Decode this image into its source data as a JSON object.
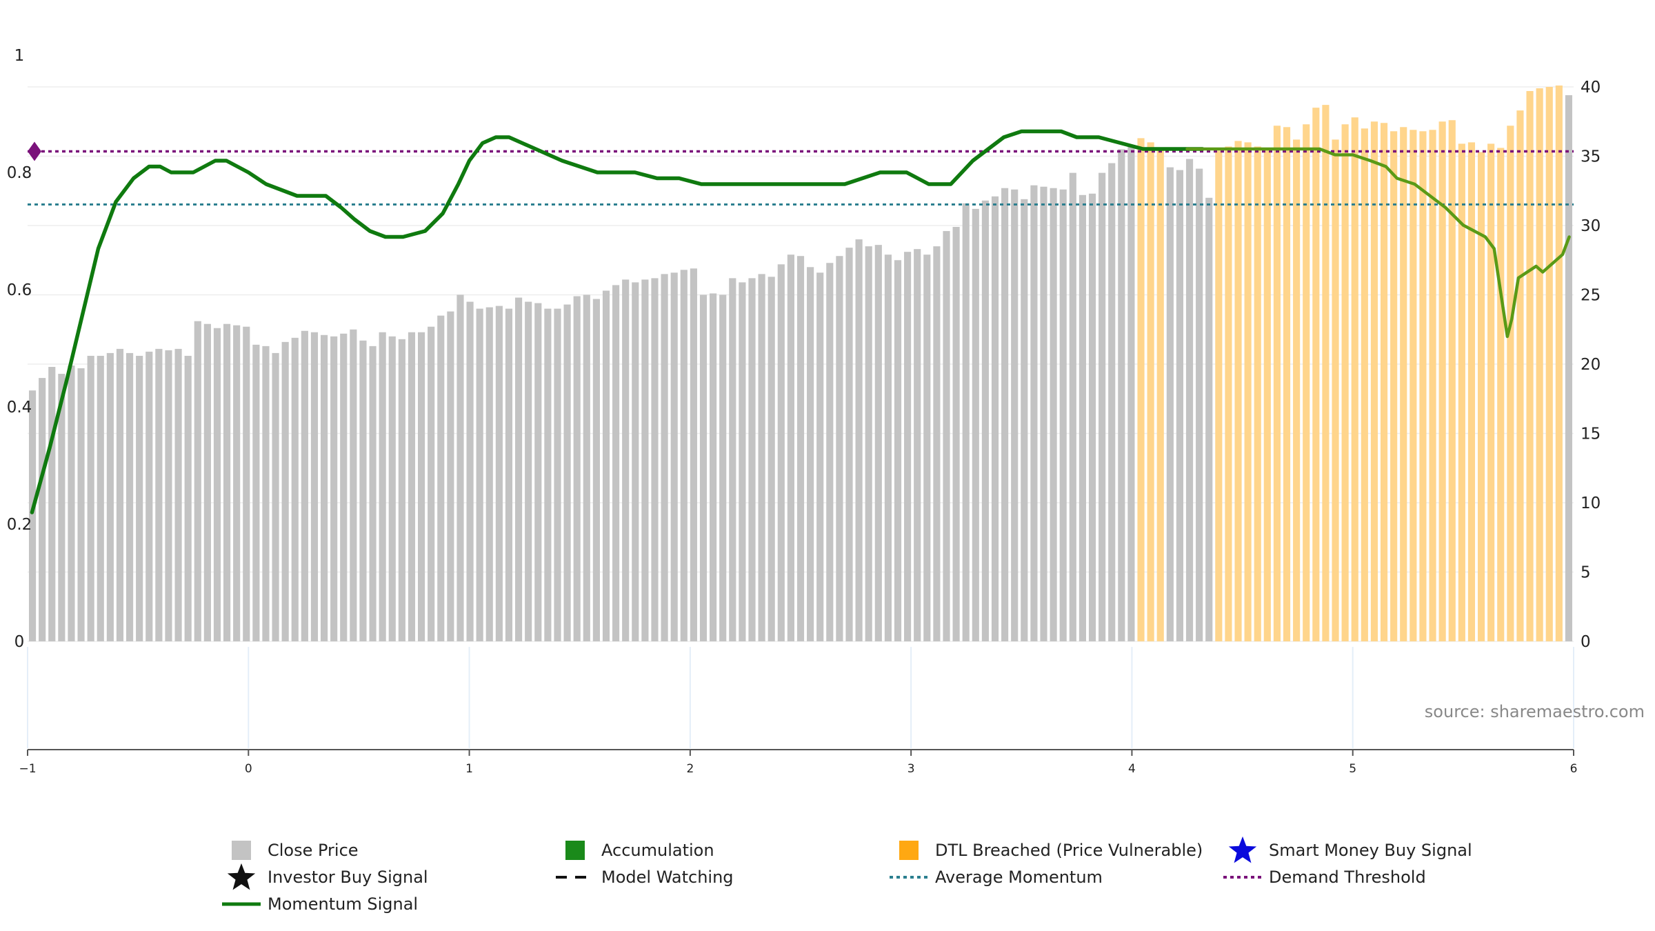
{
  "colors": {
    "close_price": "#c3c3c3",
    "dtl_breached": "#ffd58c",
    "accumulation": "#1a8a1a",
    "momentum": "#0f7a0f",
    "momentum_late": "#5a9a16",
    "average_momentum": "#2b7f8f",
    "demand_threshold": "#7a127a",
    "smart_money": "#0a0adc",
    "investor": "#111111"
  },
  "chart_data": {
    "type": "bar",
    "source": "source: sharemaestro.com",
    "x_range": [
      -1,
      6
    ],
    "x_ticks": [
      -1,
      0,
      1,
      2,
      3,
      4,
      5,
      6
    ],
    "x_tick_labels": [
      "−1",
      "0",
      "1",
      "2",
      "3",
      "4",
      "5",
      "6"
    ],
    "y_left_range": [
      0,
      1
    ],
    "y_left_ticks": [
      0,
      0.2,
      0.4,
      0.6,
      0.8,
      1
    ],
    "y_left_tick_labels": [
      "0",
      "0.2",
      "0.4",
      "0.6",
      "0.8",
      "1"
    ],
    "y_right_range": [
      0,
      40
    ],
    "y_right_ticks": [
      0,
      5,
      10,
      15,
      20,
      25,
      30,
      35,
      40
    ],
    "y_right_tick_labels": [
      "0",
      "5",
      "10",
      "15",
      "20",
      "25",
      "30",
      "35",
      "40"
    ],
    "series": [
      {
        "name": "Close Price",
        "axis": "right",
        "values": [
          18.1,
          19.0,
          19.8,
          19.3,
          19.9,
          19.7,
          20.6,
          20.6,
          20.8,
          21.1,
          20.8,
          20.6,
          20.9,
          21.1,
          21.0,
          21.1,
          20.6,
          23.1,
          22.9,
          22.6,
          22.9,
          22.8,
          22.7,
          21.4,
          21.3,
          20.8,
          21.6,
          21.9,
          22.4,
          22.3,
          22.1,
          22.0,
          22.2,
          22.5,
          21.7,
          21.3,
          22.3,
          22.0,
          21.8,
          22.3,
          22.3,
          22.7,
          23.5,
          23.8,
          25.0,
          24.5,
          24.0,
          24.1,
          24.2,
          24.0,
          24.8,
          24.5,
          24.4,
          24.0,
          24.0,
          24.3,
          24.9,
          25.0,
          24.7,
          25.3,
          25.7,
          26.1,
          25.9,
          26.1,
          26.2,
          26.5,
          26.6,
          26.8,
          26.9,
          25.0,
          25.1,
          25.0,
          26.2,
          25.9,
          26.2,
          26.5,
          26.3,
          27.2,
          27.9,
          27.8,
          27.0,
          26.6,
          27.3,
          27.8,
          28.4,
          29.0,
          28.5,
          28.6,
          27.9,
          27.5,
          28.1,
          28.3,
          27.9,
          28.5,
          29.6,
          29.9,
          31.6,
          31.2,
          31.8,
          32.1,
          32.7,
          32.6,
          31.9,
          32.9,
          32.8,
          32.7,
          32.6,
          33.8,
          32.2,
          32.3,
          33.8,
          34.5,
          35.5,
          35.8,
          36.3,
          36.0,
          35.6,
          34.2,
          34.0,
          34.8,
          34.1,
          32.0,
          35.4,
          35.7,
          36.1,
          36.0,
          35.7,
          35.6,
          37.2,
          37.1,
          36.2,
          37.3,
          38.5,
          38.7,
          36.2,
          37.3,
          37.8,
          37.0,
          37.5,
          37.4,
          36.8,
          37.1,
          36.9,
          36.8,
          36.9,
          37.5,
          37.6,
          35.9,
          36.0,
          35.3,
          35.9,
          35.6,
          37.2,
          38.3,
          39.7,
          39.9,
          40.0,
          40.1,
          39.4
        ],
        "dtl_breached_from_index": [
          114,
          115,
          116,
          122,
          123,
          124,
          125,
          126,
          127,
          128,
          129,
          130,
          131,
          132,
          133,
          134,
          135,
          136,
          137,
          138,
          139,
          140,
          141,
          142,
          143,
          144,
          145,
          146,
          147,
          148,
          149,
          150,
          151,
          152,
          153,
          154,
          155,
          156,
          157
        ]
      },
      {
        "name": "Momentum Signal",
        "axis": "left",
        "x": [
          -0.98,
          -0.9,
          -0.82,
          -0.75,
          -0.68,
          -0.6,
          -0.52,
          -0.45,
          -0.4,
          -0.35,
          -0.3,
          -0.25,
          -0.2,
          -0.15,
          -0.1,
          -0.05,
          0.0,
          0.08,
          0.15,
          0.22,
          0.28,
          0.35,
          0.42,
          0.48,
          0.55,
          0.62,
          0.7,
          0.8,
          0.88,
          0.95,
          1.0,
          1.06,
          1.12,
          1.18,
          1.24,
          1.3,
          1.36,
          1.42,
          1.5,
          1.58,
          1.66,
          1.75,
          1.85,
          1.95,
          2.05,
          2.15,
          2.25,
          2.35,
          2.45,
          2.55,
          2.62,
          2.7,
          2.78,
          2.86,
          2.92,
          2.98,
          3.03,
          3.08,
          3.13,
          3.18,
          3.23,
          3.28,
          3.35,
          3.42,
          3.5,
          3.56,
          3.62,
          3.68,
          3.75,
          3.85,
          3.95,
          4.05,
          4.15,
          4.25,
          4.32,
          4.4,
          4.5,
          4.6,
          4.7,
          4.78,
          4.85,
          4.92,
          5.0,
          5.08,
          5.15,
          5.2,
          5.28,
          5.35,
          5.42,
          5.5,
          5.55,
          5.6,
          5.64,
          5.66,
          5.7,
          5.72,
          5.75,
          5.79,
          5.83,
          5.86,
          5.89,
          5.92,
          5.95,
          5.98
        ],
        "values": [
          0.22,
          0.33,
          0.45,
          0.56,
          0.67,
          0.75,
          0.79,
          0.81,
          0.81,
          0.8,
          0.8,
          0.8,
          0.81,
          0.82,
          0.82,
          0.81,
          0.8,
          0.78,
          0.77,
          0.76,
          0.76,
          0.76,
          0.74,
          0.72,
          0.7,
          0.69,
          0.69,
          0.7,
          0.73,
          0.78,
          0.82,
          0.85,
          0.86,
          0.86,
          0.85,
          0.84,
          0.83,
          0.82,
          0.81,
          0.8,
          0.8,
          0.8,
          0.79,
          0.79,
          0.78,
          0.78,
          0.78,
          0.78,
          0.78,
          0.78,
          0.78,
          0.78,
          0.79,
          0.8,
          0.8,
          0.8,
          0.79,
          0.78,
          0.78,
          0.78,
          0.8,
          0.82,
          0.84,
          0.86,
          0.87,
          0.87,
          0.87,
          0.87,
          0.86,
          0.86,
          0.85,
          0.84,
          0.84,
          0.84,
          0.84,
          0.84,
          0.84,
          0.84,
          0.84,
          0.84,
          0.84,
          0.83,
          0.83,
          0.82,
          0.81,
          0.79,
          0.78,
          0.76,
          0.74,
          0.71,
          0.7,
          0.69,
          0.67,
          0.62,
          0.52,
          0.55,
          0.62,
          0.63,
          0.64,
          0.63,
          0.64,
          0.65,
          0.66,
          0.69
        ]
      },
      {
        "name": "Average Momentum",
        "axis": "left",
        "constant": 0.75
      },
      {
        "name": "Demand Threshold",
        "axis": "left",
        "constant": 0.83
      }
    ],
    "demand_threshold_marker": {
      "x": -1,
      "y": 0.83
    },
    "legend_placement": "bottom",
    "legend": [
      {
        "label": "Close Price",
        "symbol": "square",
        "color_key": "close_price"
      },
      {
        "label": "Accumulation",
        "symbol": "square",
        "color_key": "accumulation"
      },
      {
        "label": "DTL Breached (Price Vulnerable)",
        "symbol": "square",
        "color_key": "dtl_breached"
      },
      {
        "label": "Smart Money Buy Signal",
        "symbol": "star",
        "color_key": "smart_money"
      },
      {
        "label": "Investor Buy Signal",
        "symbol": "star",
        "color_key": "investor"
      },
      {
        "label": "Model Watching",
        "symbol": "dash",
        "color_key": "investor"
      },
      {
        "label": "Average Momentum",
        "symbol": "dot",
        "color_key": "average_momentum"
      },
      {
        "label": "Demand Threshold",
        "symbol": "dot",
        "color_key": "demand_threshold"
      },
      {
        "label": "Momentum Signal",
        "symbol": "line",
        "color_key": "momentum"
      }
    ]
  }
}
